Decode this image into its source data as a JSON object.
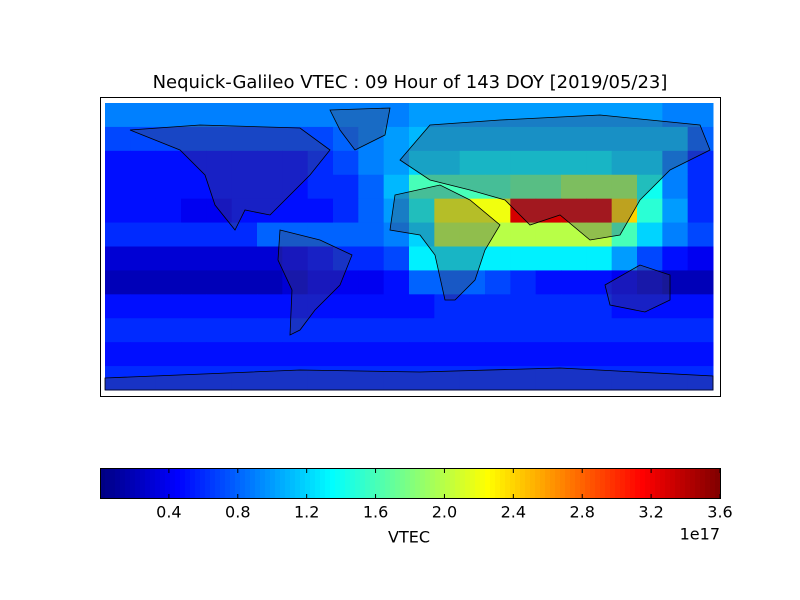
{
  "chart_data": {
    "type": "heatmap",
    "title": "Nequick-Galileo VTEC : 09 Hour of 143 DOY [2019/05/23]",
    "colormap": "jet",
    "grid": [
      [
        0.9,
        0.9,
        0.9,
        0.9,
        0.9,
        0.9,
        0.9,
        0.9,
        0.9,
        0.9,
        0.9,
        0.9,
        1.0,
        1.0,
        1.0,
        1.0,
        1.0,
        1.0,
        1.0,
        1.0,
        1.0,
        1.0,
        0.9,
        0.9
      ],
      [
        0.7,
        0.7,
        0.7,
        0.7,
        0.7,
        0.7,
        0.7,
        0.7,
        0.7,
        0.8,
        0.9,
        1.0,
        1.1,
        1.1,
        1.1,
        1.1,
        1.1,
        1.1,
        1.1,
        1.1,
        1.1,
        1.1,
        1.1,
        0.8
      ],
      [
        0.5,
        0.5,
        0.5,
        0.5,
        0.5,
        0.5,
        0.5,
        0.5,
        0.6,
        0.7,
        0.9,
        1.0,
        1.2,
        1.2,
        1.3,
        1.3,
        1.3,
        1.3,
        1.3,
        1.3,
        1.2,
        1.2,
        0.9,
        0.6
      ],
      [
        0.5,
        0.5,
        0.5,
        0.5,
        0.5,
        0.5,
        0.5,
        0.5,
        0.6,
        0.6,
        0.8,
        1.1,
        1.6,
        1.6,
        1.6,
        1.6,
        1.7,
        1.7,
        1.9,
        1.9,
        1.9,
        1.4,
        0.9,
        0.6
      ],
      [
        0.5,
        0.5,
        0.5,
        0.4,
        0.4,
        0.5,
        0.5,
        0.5,
        0.5,
        0.6,
        0.8,
        1.0,
        1.4,
        2.2,
        2.2,
        2.2,
        3.3,
        3.3,
        3.3,
        3.3,
        2.4,
        1.5,
        1.0,
        0.6
      ],
      [
        0.6,
        0.6,
        0.6,
        0.6,
        0.6,
        0.6,
        0.8,
        0.8,
        0.8,
        0.8,
        0.8,
        0.9,
        1.2,
        2.0,
        2.0,
        2.0,
        2.0,
        2.0,
        2.0,
        2.0,
        1.6,
        1.2,
        0.9,
        0.7
      ],
      [
        0.3,
        0.3,
        0.3,
        0.3,
        0.3,
        0.3,
        0.3,
        0.4,
        0.5,
        0.6,
        0.6,
        0.7,
        1.3,
        1.3,
        1.3,
        1.3,
        1.3,
        1.3,
        1.3,
        1.3,
        1.0,
        0.7,
        0.5,
        0.4
      ],
      [
        0.2,
        0.2,
        0.2,
        0.2,
        0.2,
        0.2,
        0.2,
        0.3,
        0.4,
        0.4,
        0.4,
        0.5,
        0.8,
        0.8,
        0.8,
        0.7,
        0.6,
        0.5,
        0.5,
        0.5,
        0.4,
        0.3,
        0.2,
        0.2
      ],
      [
        0.5,
        0.5,
        0.5,
        0.5,
        0.5,
        0.5,
        0.5,
        0.5,
        0.5,
        0.5,
        0.5,
        0.5,
        0.5,
        0.6,
        0.6,
        0.6,
        0.6,
        0.6,
        0.6,
        0.6,
        0.5,
        0.5,
        0.5,
        0.5
      ],
      [
        0.6,
        0.6,
        0.6,
        0.6,
        0.6,
        0.6,
        0.6,
        0.6,
        0.6,
        0.6,
        0.6,
        0.6,
        0.6,
        0.6,
        0.6,
        0.6,
        0.6,
        0.6,
        0.6,
        0.6,
        0.6,
        0.6,
        0.6,
        0.6
      ],
      [
        0.5,
        0.5,
        0.5,
        0.5,
        0.5,
        0.5,
        0.5,
        0.5,
        0.5,
        0.5,
        0.5,
        0.5,
        0.5,
        0.5,
        0.5,
        0.5,
        0.5,
        0.5,
        0.5,
        0.5,
        0.5,
        0.5,
        0.5,
        0.5
      ],
      [
        0.6,
        0.6,
        0.6,
        0.6,
        0.6,
        0.6,
        0.6,
        0.6,
        0.6,
        0.6,
        0.6,
        0.6,
        0.6,
        0.6,
        0.6,
        0.6,
        0.6,
        0.6,
        0.6,
        0.6,
        0.6,
        0.6,
        0.6,
        0.6
      ]
    ],
    "colorbar": {
      "label": "VTEC",
      "offset_label": "1e17",
      "lim": [
        0,
        3.6
      ],
      "ticks": [
        0.4,
        0.8,
        1.2,
        1.6,
        {
          "value": 2,
          "label": "2.0"
        },
        2.4,
        2.8,
        3.2,
        3.6
      ]
    }
  }
}
